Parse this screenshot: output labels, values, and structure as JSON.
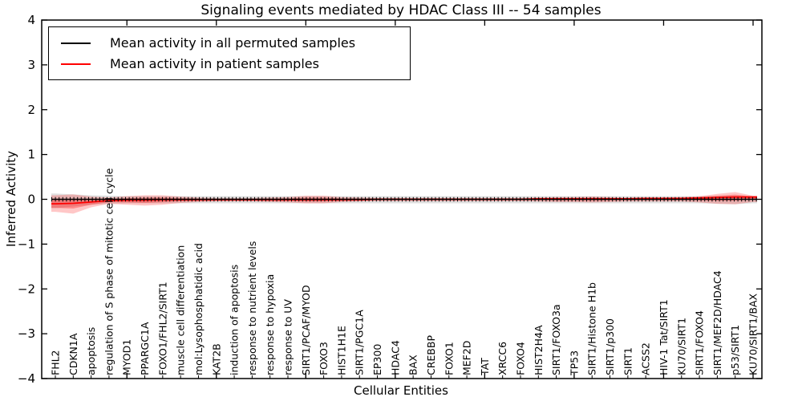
{
  "figure": {
    "title": "Signaling events mediated by HDAC Class III -- 54 samples",
    "xlabel": "Cellular Entities",
    "ylabel": "Inferred Activity"
  },
  "legend": {
    "items": [
      {
        "label": "Mean activity in all permuted samples",
        "color": "#000000"
      },
      {
        "label": "Mean activity in patient samples",
        "color": "#ff0000"
      }
    ],
    "position": "upper left"
  },
  "chart_data": {
    "type": "line",
    "title": "Signaling events mediated by HDAC Class III -- 54 samples",
    "xlabel": "Cellular Entities",
    "ylabel": "Inferred Activity",
    "ylim": [
      -4,
      4
    ],
    "yticks": [
      4,
      3,
      2,
      1,
      0,
      -1,
      -2,
      -3,
      -4
    ],
    "ytick_labels": [
      "4",
      "3",
      "2",
      "1",
      "0",
      "−1",
      "−2",
      "−3",
      "−4"
    ],
    "grid": false,
    "legend_position": "upper left",
    "categories": [
      "FHL2",
      "CDKN1A",
      "apoptosis",
      "regulation of S phase of mitotic cell cycle",
      "MYOD1",
      "PPARGC1A",
      "FOXO1/FHL2/SIRT1",
      "muscle cell differentiation",
      "mol:Lysophosphatidic acid",
      "KAT2B",
      "induction of apoptosis",
      "response to nutrient levels",
      "response to hypoxia",
      "response to UV",
      "SIRT1/PCAF/MYOD",
      "FOXO3",
      "HIST1H1E",
      "SIRT1/PGC1A",
      "EP300",
      "HDAC4",
      "BAX",
      "CREBBP",
      "FOXO1",
      "MEF2D",
      "TAT",
      "XRCC6",
      "FOXO4",
      "HIST2H4A",
      "SIRT1/FOXO3a",
      "TP53",
      "SIRT1/Histone H1b",
      "SIRT1/p300",
      "SIRT1",
      "ACSS2",
      "HIV-1 Tat/SIRT1",
      "KU70/SIRT1",
      "SIRT1/FOXO4",
      "SIRT1/MEF2D/HDAC4",
      "p53/SIRT1",
      "KU70/SIRT1/BAX"
    ],
    "series": [
      {
        "name": "Mean activity in all permuted samples",
        "color": "#000000",
        "marker": "plus",
        "values": [
          0,
          0,
          0,
          0,
          0,
          0,
          0,
          0,
          0,
          0,
          0,
          0,
          0,
          0,
          0,
          0,
          0,
          0,
          0,
          0,
          0,
          0,
          0,
          0,
          0,
          0,
          0,
          0,
          0,
          0,
          0,
          0,
          0,
          0,
          0,
          0,
          0,
          0,
          0,
          0
        ]
      },
      {
        "name": "Mean activity in patient samples",
        "color": "#ff0000",
        "marker": "none",
        "values": [
          -0.1,
          -0.09,
          -0.06,
          -0.03,
          -0.02,
          -0.02,
          -0.01,
          -0.01,
          -0.01,
          -0.01,
          -0.01,
          -0.01,
          -0.01,
          -0.01,
          -0.01,
          -0.01,
          -0.01,
          -0.01,
          0,
          0,
          0,
          0,
          0,
          0,
          0,
          0,
          0,
          0.01,
          0.01,
          0.01,
          0.01,
          0.01,
          0.01,
          0.02,
          0.02,
          0.02,
          0.03,
          0.04,
          0.05,
          0.05
        ]
      }
    ],
    "bands": [
      {
        "name": "permuted samples range",
        "color": "rgba(0,0,0,0.12)",
        "upper": [
          0.13,
          0.11,
          0.09,
          0.08,
          0.07,
          0.07,
          0.07,
          0.07,
          0.07,
          0.07,
          0.07,
          0.07,
          0.07,
          0.07,
          0.07,
          0.07,
          0.07,
          0.07,
          0.07,
          0.07,
          0.07,
          0.07,
          0.07,
          0.07,
          0.07,
          0.07,
          0.07,
          0.07,
          0.07,
          0.07,
          0.07,
          0.07,
          0.07,
          0.07,
          0.07,
          0.07,
          0.07,
          0.07,
          0.08,
          0.07
        ],
        "lower": [
          -0.2,
          -0.16,
          -0.12,
          -0.1,
          -0.09,
          -0.09,
          -0.09,
          -0.09,
          -0.09,
          -0.09,
          -0.09,
          -0.09,
          -0.09,
          -0.09,
          -0.09,
          -0.09,
          -0.09,
          -0.09,
          -0.09,
          -0.09,
          -0.09,
          -0.09,
          -0.09,
          -0.09,
          -0.09,
          -0.09,
          -0.09,
          -0.09,
          -0.09,
          -0.09,
          -0.09,
          -0.09,
          -0.09,
          -0.09,
          -0.09,
          -0.09,
          -0.09,
          -0.1,
          -0.11,
          -0.09
        ]
      },
      {
        "name": "patient samples range (outer)",
        "color": "rgba(255,0,0,0.22)",
        "upper": [
          0.09,
          0.11,
          0.06,
          0.04,
          0.07,
          0.09,
          0.09,
          0.06,
          0.04,
          0.03,
          0.03,
          0.03,
          0.04,
          0.05,
          0.08,
          0.08,
          0.05,
          0.04,
          0.03,
          0.03,
          0.03,
          0.03,
          0.03,
          0.03,
          0.03,
          0.03,
          0.03,
          0.04,
          0.05,
          0.05,
          0.06,
          0.05,
          0.04,
          0.04,
          0.04,
          0.05,
          0.07,
          0.12,
          0.16,
          0.08
        ],
        "lower": [
          -0.28,
          -0.32,
          -0.18,
          -0.1,
          -0.12,
          -0.14,
          -0.12,
          -0.08,
          -0.06,
          -0.05,
          -0.05,
          -0.05,
          -0.06,
          -0.07,
          -0.09,
          -0.09,
          -0.06,
          -0.05,
          -0.04,
          -0.04,
          -0.04,
          -0.04,
          -0.04,
          -0.04,
          -0.04,
          -0.04,
          -0.04,
          -0.05,
          -0.06,
          -0.06,
          -0.07,
          -0.06,
          -0.05,
          -0.05,
          -0.05,
          -0.05,
          -0.07,
          -0.1,
          -0.11,
          -0.06
        ]
      },
      {
        "name": "patient samples range (inner)",
        "color": "rgba(255,0,0,0.30)",
        "upper": [
          -0.005,
          0.01,
          0.0,
          0.005,
          0.025,
          0.035,
          0.04,
          0.025,
          0.015,
          0.01,
          0.01,
          0.01,
          0.015,
          0.02,
          0.035,
          0.035,
          0.02,
          0.015,
          0.015,
          0.015,
          0.015,
          0.015,
          0.015,
          0.015,
          0.015,
          0.015,
          0.015,
          0.025,
          0.03,
          0.03,
          0.035,
          0.03,
          0.025,
          0.03,
          0.03,
          0.035,
          0.05,
          0.08,
          0.105,
          0.065
        ],
        "lower": [
          -0.19,
          -0.205,
          -0.12,
          -0.065,
          -0.07,
          -0.08,
          -0.065,
          -0.045,
          -0.035,
          -0.03,
          -0.03,
          -0.03,
          -0.035,
          -0.04,
          -0.05,
          -0.05,
          -0.035,
          -0.03,
          -0.02,
          -0.02,
          -0.02,
          -0.02,
          -0.02,
          -0.02,
          -0.02,
          -0.02,
          -0.02,
          -0.02,
          -0.025,
          -0.025,
          -0.03,
          -0.025,
          -0.02,
          -0.015,
          -0.015,
          -0.015,
          -0.02,
          -0.03,
          -0.03,
          -0.005
        ]
      }
    ]
  }
}
